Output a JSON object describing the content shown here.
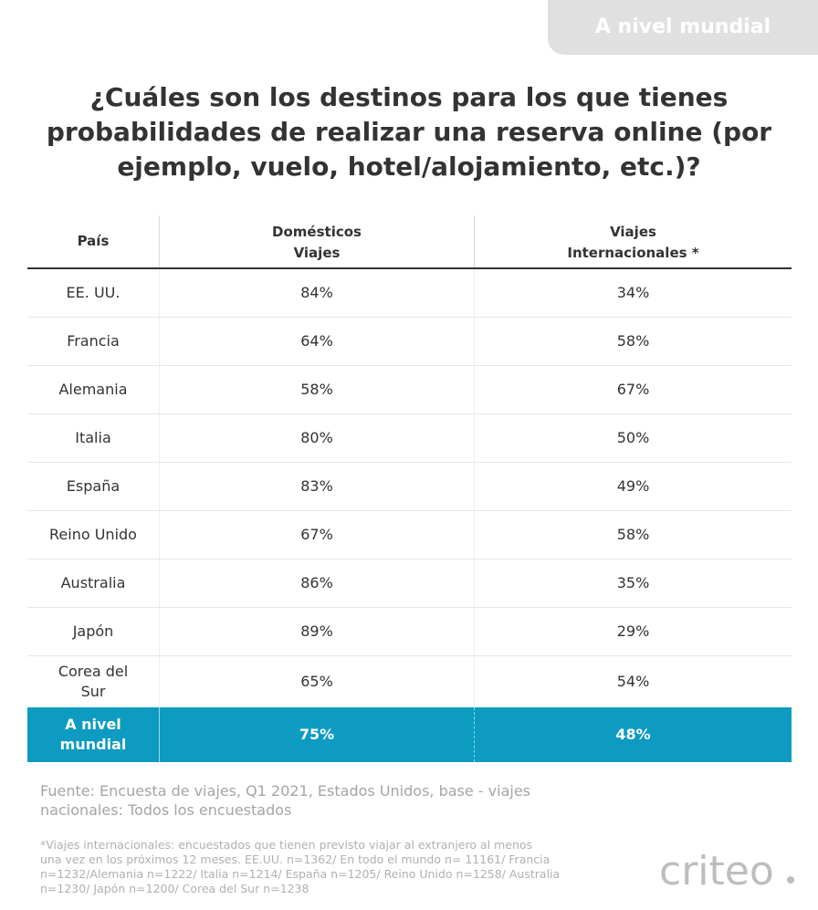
{
  "corner_tag": "A nivel mundial",
  "title_lines": [
    "¿Cuáles son los destinos para los que tienes",
    "probabilidades de realizar una reserva online (por",
    "ejemplo, vuelo, hotel/alojamiento, etc.)?"
  ],
  "table": {
    "headers": {
      "country": "País",
      "domestic_line1": "Domésticos",
      "domestic_line2": "Viajes",
      "intl_line1": "Viajes",
      "intl_line2": "Internacionales *"
    },
    "rows": [
      {
        "country": "EE. UU.",
        "domestic": "84%",
        "international": "34%"
      },
      {
        "country": "Francia",
        "domestic": "64%",
        "international": "58%"
      },
      {
        "country": "Alemania",
        "domestic": "58%",
        "international": "67%"
      },
      {
        "country": "Italia",
        "domestic": "80%",
        "international": "50%"
      },
      {
        "country": "España",
        "domestic": "83%",
        "international": "49%"
      },
      {
        "country": "Reino Unido",
        "domestic": "67%",
        "international": "58%"
      },
      {
        "country": "Australia",
        "domestic": "86%",
        "international": "35%"
      },
      {
        "country": "Japón",
        "domestic": "89%",
        "international": "29%"
      },
      {
        "country_line1": "Corea del",
        "country_line2": "Sur",
        "domestic": "65%",
        "international": "54%"
      }
    ],
    "total": {
      "label_line1": "A nivel",
      "label_line2": "mundial",
      "domestic": "75%",
      "international": "48%"
    }
  },
  "source_lines": [
    "Fuente: Encuesta de viajes, Q1 2021, Estados Unidos, base - viajes",
    "nacionales: Todos los encuestados"
  ],
  "footnote_lines": [
    "*Viajes internacionales: encuestados que tienen previsto viajar al extranjero al menos",
    "una vez en los próximos 12 meses. EE.UU. n=1362/ En todo el mundo n= 11161/ Francia",
    "n=1232/Alemania n=1222/ Italia n=1214/ España n=1205/ Reino Unido n=1258/ Australia",
    "n=1230/ Japón n=1200/ Corea del Sur n=1238"
  ],
  "logo_text": "criteo",
  "colors": {
    "accent": "#0e9bc1",
    "tag_bg": "#e0e0e0",
    "text": "#333333",
    "muted": "#a5a5a5"
  }
}
